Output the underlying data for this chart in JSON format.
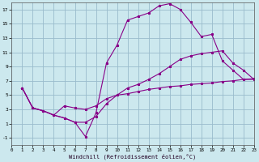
{
  "bg_color": "#cce8ee",
  "grid_color": "#99bbcc",
  "line_color": "#880088",
  "xlim": [
    0,
    23
  ],
  "ylim": [
    -2,
    18
  ],
  "xticks": [
    0,
    1,
    2,
    3,
    4,
    5,
    6,
    7,
    8,
    9,
    10,
    11,
    12,
    13,
    14,
    15,
    16,
    17,
    18,
    19,
    20,
    21,
    22,
    23
  ],
  "yticks": [
    -1,
    1,
    3,
    5,
    7,
    9,
    11,
    13,
    15,
    17
  ],
  "xlabel": "Windchill (Refroidissement éolien,°C)",
  "line1_x": [
    1,
    2,
    3,
    4,
    5,
    6,
    7,
    8,
    9,
    10,
    11,
    12,
    13,
    14,
    15,
    16,
    17,
    18,
    19,
    20,
    21,
    22,
    23
  ],
  "line1_y": [
    6.0,
    3.2,
    2.8,
    2.2,
    3.5,
    3.2,
    3.0,
    3.5,
    4.5,
    5.0,
    5.2,
    5.5,
    5.8,
    6.0,
    6.2,
    6.3,
    6.5,
    6.6,
    6.7,
    6.9,
    7.0,
    7.2,
    7.3
  ],
  "line2_x": [
    1,
    2,
    3,
    4,
    5,
    6,
    7,
    8,
    9,
    10,
    11,
    12,
    13,
    14,
    15,
    16,
    17,
    18,
    19,
    20,
    21,
    22,
    23
  ],
  "line2_y": [
    6.0,
    3.2,
    2.8,
    2.2,
    1.8,
    1.2,
    1.2,
    2.0,
    3.8,
    5.0,
    6.0,
    6.5,
    7.2,
    8.0,
    9.0,
    10.0,
    10.5,
    10.8,
    11.0,
    11.2,
    9.5,
    8.5,
    7.2
  ],
  "line3_x": [
    1,
    2,
    3,
    4,
    5,
    6,
    7,
    8,
    9,
    10,
    11,
    12,
    13,
    14,
    15,
    16,
    17,
    18,
    19,
    20,
    21,
    22,
    23
  ],
  "line3_y": [
    6.0,
    3.2,
    2.8,
    2.2,
    1.8,
    1.2,
    -0.8,
    2.5,
    9.5,
    12.0,
    15.5,
    16.0,
    16.5,
    17.5,
    17.8,
    17.0,
    15.2,
    13.2,
    13.5,
    9.8,
    8.5,
    7.2,
    7.2
  ]
}
